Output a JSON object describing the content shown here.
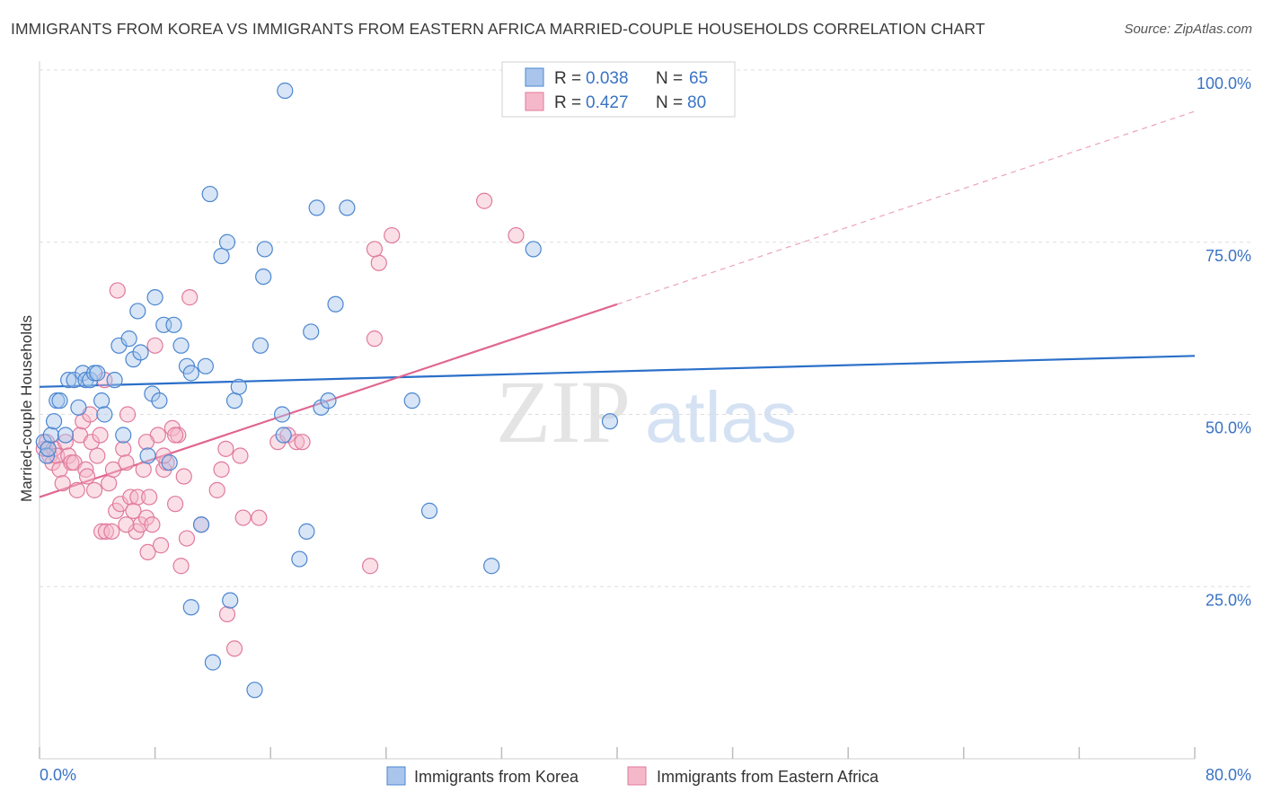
{
  "title": "IMMIGRANTS FROM KOREA VS IMMIGRANTS FROM EASTERN AFRICA MARRIED-COUPLE HOUSEHOLDS CORRELATION CHART",
  "source": "Source: ZipAtlas.com",
  "watermark": {
    "zip": "ZIP",
    "atlas": "atlas"
  },
  "colors": {
    "korea_fill": "#a9c5ec",
    "korea_stroke": "#4a86d0",
    "korea_line": "#2a6fc9",
    "eafrica_fill": "#f5b8ca",
    "eafrica_stroke": "#e07a9c",
    "eafrica_line": "#e0668f",
    "tick_text": "#3a73c4",
    "grid": "#dddddd"
  },
  "legend": {
    "rows": [
      {
        "r_label": "R =",
        "r_value": "0.038",
        "n_label": "N =",
        "n_value": "65"
      },
      {
        "r_label": "R =",
        "r_value": "0.427",
        "n_label": "N =",
        "n_value": "80"
      }
    ]
  },
  "chart_data": {
    "type": "scatter",
    "title": "IMMIGRANTS FROM KOREA VS IMMIGRANTS FROM EASTERN AFRICA MARRIED-COUPLE HOUSEHOLDS CORRELATION CHART",
    "xlabel": "",
    "ylabel": "Married-couple Households",
    "xlim": [
      0,
      80
    ],
    "ylim": [
      0,
      100
    ],
    "x_tick_labels": [
      "0.0%",
      "80.0%"
    ],
    "y_ticks": [
      25,
      50,
      75,
      100
    ],
    "y_tick_labels": [
      "25.0%",
      "50.0%",
      "75.0%",
      "100.0%"
    ],
    "grid": true,
    "legend_position": "top-center",
    "series": [
      {
        "name": "Immigrants from Korea",
        "r": 0.038,
        "n": 65,
        "trend": {
          "x": [
            0,
            80
          ],
          "y": [
            54.0,
            58.5
          ],
          "dashed_extension": false
        },
        "points": [
          [
            0.3,
            46
          ],
          [
            0.5,
            44
          ],
          [
            0.6,
            45
          ],
          [
            0.8,
            47
          ],
          [
            1.0,
            49
          ],
          [
            1.2,
            52
          ],
          [
            1.4,
            52
          ],
          [
            1.8,
            47
          ],
          [
            2.0,
            55
          ],
          [
            2.4,
            55
          ],
          [
            2.7,
            51
          ],
          [
            3.0,
            56
          ],
          [
            3.2,
            55
          ],
          [
            3.5,
            55
          ],
          [
            3.8,
            56
          ],
          [
            4.0,
            56
          ],
          [
            4.3,
            52
          ],
          [
            4.5,
            50
          ],
          [
            5.2,
            55
          ],
          [
            5.5,
            60
          ],
          [
            5.8,
            47
          ],
          [
            6.2,
            61
          ],
          [
            6.5,
            58
          ],
          [
            6.8,
            65
          ],
          [
            7.0,
            59
          ],
          [
            7.5,
            44
          ],
          [
            7.8,
            53
          ],
          [
            8.0,
            67
          ],
          [
            8.3,
            52
          ],
          [
            8.6,
            63
          ],
          [
            9.0,
            43
          ],
          [
            9.3,
            63
          ],
          [
            9.8,
            60
          ],
          [
            10.2,
            57
          ],
          [
            10.5,
            56
          ],
          [
            10.5,
            22
          ],
          [
            11.2,
            34
          ],
          [
            11.5,
            57
          ],
          [
            11.8,
            82
          ],
          [
            12.0,
            14
          ],
          [
            12.6,
            73
          ],
          [
            13.0,
            75
          ],
          [
            13.2,
            23
          ],
          [
            13.5,
            52
          ],
          [
            13.8,
            54
          ],
          [
            14.9,
            10
          ],
          [
            15.3,
            60
          ],
          [
            15.5,
            70
          ],
          [
            15.6,
            74
          ],
          [
            16.8,
            50
          ],
          [
            16.9,
            47
          ],
          [
            17.0,
            97
          ],
          [
            18.0,
            29
          ],
          [
            18.5,
            33
          ],
          [
            18.8,
            62
          ],
          [
            19.2,
            80
          ],
          [
            19.5,
            51
          ],
          [
            20.0,
            52
          ],
          [
            20.5,
            66
          ],
          [
            21.3,
            80
          ],
          [
            25.8,
            52
          ],
          [
            27.0,
            36
          ],
          [
            31.3,
            28
          ],
          [
            34.2,
            74
          ],
          [
            39.5,
            49
          ]
        ]
      },
      {
        "name": "Immigrants from Eastern Africa",
        "r": 0.427,
        "n": 80,
        "trend": {
          "x": [
            0,
            40
          ],
          "y": [
            38.0,
            66.0
          ],
          "dashed_extension": {
            "x": [
              40,
              80
            ],
            "y": [
              66.0,
              94.0
            ]
          }
        },
        "points": [
          [
            0.3,
            45
          ],
          [
            0.5,
            46
          ],
          [
            0.7,
            44
          ],
          [
            0.9,
            43
          ],
          [
            1.0,
            45
          ],
          [
            1.2,
            44
          ],
          [
            1.4,
            42
          ],
          [
            1.6,
            40
          ],
          [
            1.8,
            46
          ],
          [
            2.0,
            44
          ],
          [
            2.2,
            43
          ],
          [
            2.4,
            43
          ],
          [
            2.6,
            39
          ],
          [
            2.8,
            47
          ],
          [
            3.0,
            49
          ],
          [
            3.2,
            42
          ],
          [
            3.3,
            41
          ],
          [
            3.5,
            50
          ],
          [
            3.6,
            46
          ],
          [
            3.8,
            39
          ],
          [
            4.0,
            44
          ],
          [
            4.2,
            47
          ],
          [
            4.3,
            33
          ],
          [
            4.5,
            55
          ],
          [
            4.6,
            33
          ],
          [
            4.8,
            40
          ],
          [
            5.0,
            33
          ],
          [
            5.1,
            42
          ],
          [
            5.3,
            36
          ],
          [
            5.4,
            68
          ],
          [
            5.6,
            37
          ],
          [
            5.8,
            45
          ],
          [
            6.0,
            43
          ],
          [
            6.1,
            50
          ],
          [
            6.3,
            38
          ],
          [
            6.5,
            36
          ],
          [
            6.7,
            33
          ],
          [
            6.8,
            38
          ],
          [
            7.0,
            34
          ],
          [
            7.2,
            42
          ],
          [
            7.4,
            35
          ],
          [
            7.5,
            30
          ],
          [
            7.6,
            38
          ],
          [
            7.8,
            34
          ],
          [
            8.0,
            60
          ],
          [
            8.2,
            47
          ],
          [
            8.4,
            31
          ],
          [
            8.6,
            42
          ],
          [
            8.8,
            43
          ],
          [
            9.2,
            48
          ],
          [
            9.4,
            37
          ],
          [
            9.6,
            47
          ],
          [
            9.8,
            28
          ],
          [
            10.0,
            41
          ],
          [
            10.2,
            32
          ],
          [
            10.4,
            67
          ],
          [
            11.2,
            34
          ],
          [
            12.3,
            39
          ],
          [
            12.6,
            42
          ],
          [
            12.9,
            45
          ],
          [
            13.0,
            21
          ],
          [
            13.5,
            16
          ],
          [
            13.9,
            44
          ],
          [
            14.1,
            35
          ],
          [
            15.2,
            35
          ],
          [
            16.5,
            46
          ],
          [
            17.2,
            47
          ],
          [
            17.8,
            46
          ],
          [
            18.2,
            46
          ],
          [
            22.9,
            28
          ],
          [
            23.2,
            61
          ],
          [
            23.5,
            72
          ],
          [
            24.4,
            76
          ],
          [
            30.8,
            81
          ],
          [
            33.0,
            76
          ],
          [
            23.2,
            74
          ],
          [
            7.4,
            46
          ],
          [
            6.0,
            34
          ],
          [
            9.4,
            47
          ],
          [
            8.6,
            44
          ]
        ]
      }
    ]
  },
  "bottom_legend": [
    "Immigrants from Korea",
    "Immigrants from Eastern Africa"
  ]
}
